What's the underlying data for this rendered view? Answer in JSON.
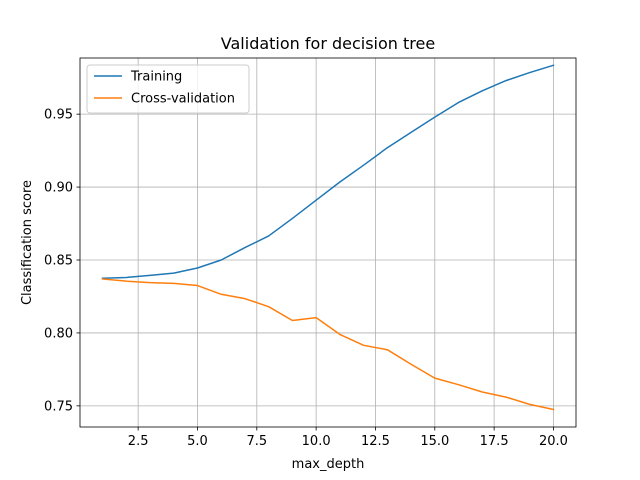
{
  "chart_data": {
    "type": "line",
    "title": "Validation for decision tree",
    "xlabel": "max_depth",
    "ylabel": "Classification score",
    "xlim": [
      0.05,
      20.95
    ],
    "ylim": [
      0.7355,
      0.9885
    ],
    "xticks": [
      2.5,
      5.0,
      7.5,
      10.0,
      12.5,
      15.0,
      17.5,
      20.0
    ],
    "xtick_labels": [
      "2.5",
      "5.0",
      "7.5",
      "10.0",
      "12.5",
      "15.0",
      "17.5",
      "20.0"
    ],
    "yticks": [
      0.75,
      0.8,
      0.85,
      0.9,
      0.95
    ],
    "ytick_labels": [
      "0.75",
      "0.80",
      "0.85",
      "0.90",
      "0.95"
    ],
    "grid": true,
    "legend_position": "upper-left",
    "x": [
      1,
      2,
      3,
      4,
      5,
      6,
      7,
      8,
      9,
      10,
      11,
      12,
      13,
      14,
      15,
      16,
      17,
      18,
      19,
      20
    ],
    "series": [
      {
        "name": "Training",
        "color": "#1f77b4",
        "values": [
          0.8375,
          0.838,
          0.8395,
          0.841,
          0.8445,
          0.85,
          0.8585,
          0.8665,
          0.8785,
          0.891,
          0.9035,
          0.915,
          0.927,
          0.9375,
          0.948,
          0.958,
          0.966,
          0.973,
          0.9785,
          0.9835
        ]
      },
      {
        "name": "Cross-validation",
        "color": "#ff7f0e",
        "values": [
          0.837,
          0.8355,
          0.8345,
          0.834,
          0.8325,
          0.8265,
          0.8235,
          0.818,
          0.8085,
          0.8105,
          0.799,
          0.7915,
          0.7885,
          0.7785,
          0.769,
          0.7645,
          0.7595,
          0.756,
          0.751,
          0.7475
        ]
      }
    ]
  }
}
